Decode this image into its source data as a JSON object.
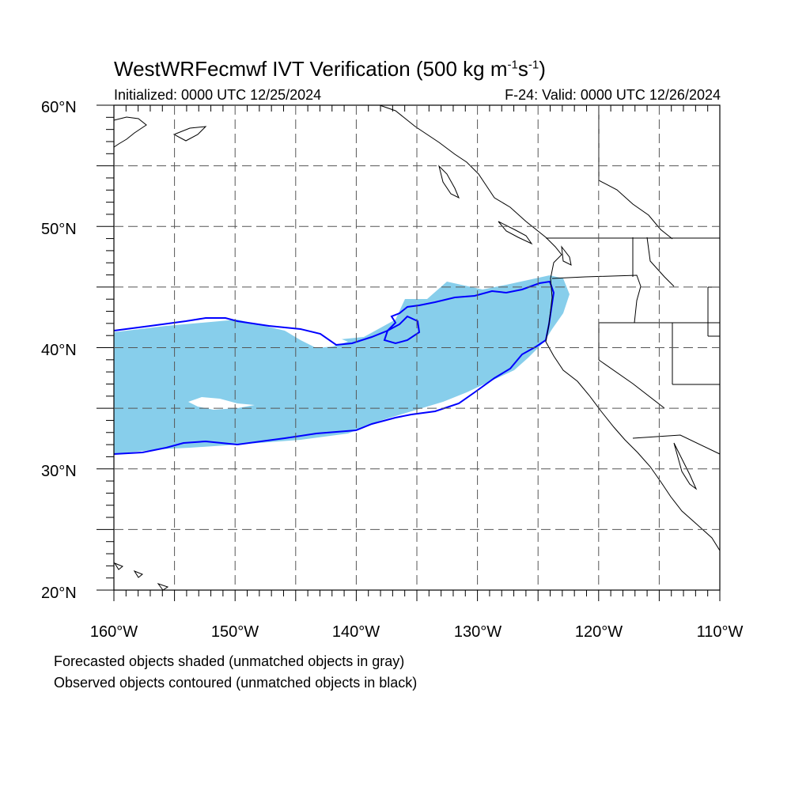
{
  "title": {
    "main": "WestWRFecmwf IVT Verification (500 kg m",
    "exp1": "-1",
    "middle": "s",
    "exp2": "-1",
    "close": ")"
  },
  "subtitle": {
    "left": "Initialized: 0000 UTC 12/25/2024",
    "right": "F-24: Valid: 0000 UTC 12/26/2024"
  },
  "axes": {
    "lat_labels": [
      "60°N",
      "50°N",
      "40°N",
      "30°N",
      "20°N"
    ],
    "lon_labels": [
      "160°W",
      "150°W",
      "140°W",
      "130°W",
      "120°W",
      "110°W"
    ],
    "lon_range": [
      -160,
      -110
    ],
    "lat_range": [
      20,
      60
    ],
    "grid": "dashed every 5°"
  },
  "colors": {
    "forecast_fill": "#87ceeb",
    "observed_contour": "#0000ff",
    "coastline": "#000000"
  },
  "footnotes": {
    "line1": "Forecasted objects shaded (unmatched objects in gray)",
    "line2": "Observed objects contoured (unmatched objects in black)"
  }
}
